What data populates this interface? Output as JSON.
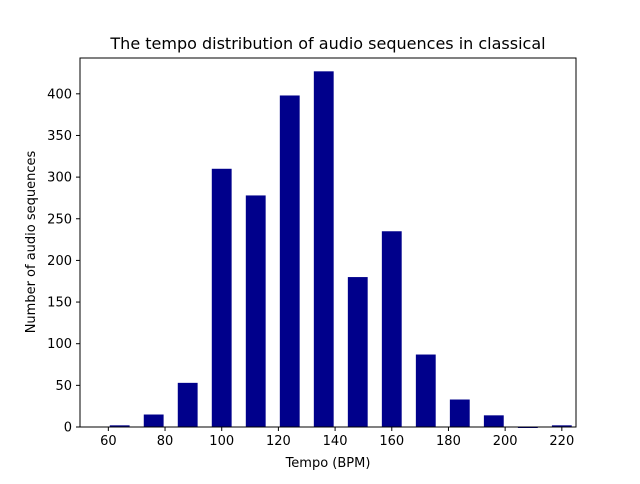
{
  "chart_data": {
    "type": "bar",
    "title": "The tempo distribution of audio sequences in classical",
    "xlabel": "Tempo (BPM)",
    "ylabel": "Number of audio sequences",
    "x": [
      64,
      76,
      88,
      100,
      112,
      124,
      136,
      148,
      160,
      172,
      184,
      196,
      208,
      220
    ],
    "values": [
      2,
      15,
      53,
      310,
      278,
      398,
      427,
      180,
      235,
      87,
      33,
      14,
      0,
      2
    ],
    "bar_color": "#00008b",
    "xlim": [
      50,
      225
    ],
    "ylim": [
      0,
      443
    ],
    "xticks": [
      60,
      80,
      100,
      120,
      140,
      160,
      180,
      200,
      220
    ],
    "yticks": [
      0,
      50,
      100,
      150,
      200,
      250,
      300,
      350,
      400
    ],
    "grid": false,
    "legend": "none"
  }
}
